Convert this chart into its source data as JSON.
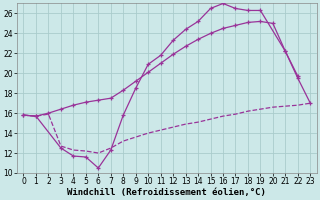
{
  "bg_color": "#cce8e8",
  "grid_color": "#aacccc",
  "line_color": "#993399",
  "xlabel": "Windchill (Refroidissement éolien,°C)",
  "tick_fontsize": 5.5,
  "xlim": [
    -0.5,
    23.5
  ],
  "ylim": [
    10,
    27
  ],
  "yticks": [
    10,
    12,
    14,
    16,
    18,
    20,
    22,
    24,
    26
  ],
  "xticks": [
    0,
    1,
    2,
    3,
    4,
    5,
    6,
    7,
    8,
    9,
    10,
    11,
    12,
    13,
    14,
    15,
    16,
    17,
    18,
    19,
    20,
    21,
    22,
    23
  ],
  "line1_x": [
    0,
    1,
    3,
    4,
    5,
    6,
    7,
    8,
    9,
    10,
    11,
    12,
    13,
    14,
    15,
    16,
    17,
    18,
    19,
    21,
    22
  ],
  "line1_y": [
    15.8,
    15.7,
    12.5,
    11.7,
    11.6,
    10.5,
    12.3,
    15.8,
    18.5,
    20.9,
    21.8,
    23.3,
    24.4,
    25.2,
    26.5,
    27.0,
    26.5,
    26.3,
    26.3,
    22.2,
    19.7
  ],
  "line2_x": [
    0,
    1,
    2,
    3,
    4,
    5,
    6,
    7,
    8,
    9,
    10,
    11,
    12,
    13,
    14,
    15,
    16,
    17,
    18,
    19,
    20,
    21,
    22,
    23
  ],
  "line2_y": [
    15.8,
    15.7,
    16.0,
    16.4,
    16.8,
    17.1,
    17.3,
    17.5,
    18.3,
    19.2,
    20.1,
    21.0,
    21.9,
    22.7,
    23.4,
    24.0,
    24.5,
    24.8,
    25.1,
    25.2,
    25.0,
    22.2,
    19.5,
    17.0
  ],
  "line3_x": [
    0,
    1,
    2,
    3,
    4,
    5,
    6,
    7,
    8,
    9,
    10,
    11,
    12,
    13,
    14,
    15,
    16,
    17,
    18,
    19,
    20,
    21,
    22,
    23
  ],
  "line3_y": [
    15.8,
    15.7,
    15.9,
    12.7,
    12.3,
    12.2,
    12.0,
    12.5,
    13.2,
    13.6,
    14.0,
    14.3,
    14.6,
    14.9,
    15.1,
    15.4,
    15.7,
    15.9,
    16.2,
    16.4,
    16.6,
    16.7,
    16.8,
    17.0
  ]
}
